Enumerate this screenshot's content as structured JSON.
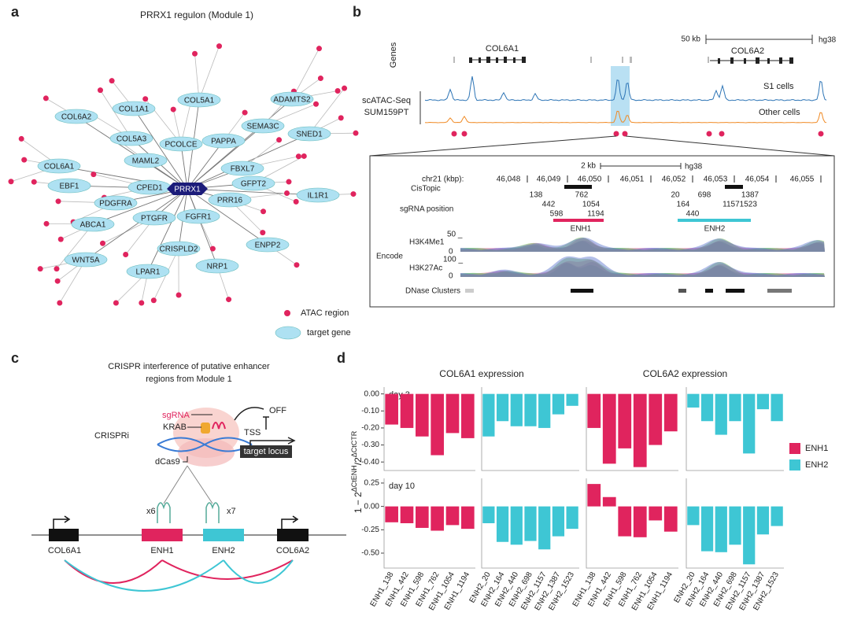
{
  "panel_labels": [
    "a",
    "b",
    "c",
    "d"
  ],
  "network": {
    "title": "PRRX1 regulon (Module 1)",
    "center": "PRRX1",
    "genes": [
      "COL1A1",
      "COL5A1",
      "ADAMTS2",
      "COL6A2",
      "COL5A3",
      "PCOLCE",
      "PAPPA",
      "SEMA3C",
      "SNED1",
      "MAML2",
      "FBXL7",
      "COL6A1",
      "EBF1",
      "CPED1",
      "GFPT2",
      "IL1R1",
      "PDGFRA",
      "PRR16",
      "FGFR1",
      "PTGFR",
      "ABCA1",
      "ENPP2",
      "CRISPLD2",
      "WNT5A",
      "NRP1",
      "LPAR1"
    ],
    "legend": [
      "ATAC region",
      "target gene"
    ]
  },
  "tracks": {
    "genes_label": "Genes",
    "gene1": "COL6A1",
    "gene2": "COL6A2",
    "scale": "50 kb",
    "build": "hg38",
    "assay": [
      "scATAC-Seq",
      "SUM159PT"
    ],
    "track1": "S1 cells",
    "track2": "Other cells",
    "inset": {
      "scale": "2 kb",
      "build": "hg38",
      "coord_label": "chr21 (kbp):",
      "coords": [
        "46,048",
        "46,049",
        "46,050",
        "46,051",
        "46,052",
        "46,053",
        "46,054",
        "46,055"
      ],
      "cistopic": "CisTopic",
      "sgrna": "sgRNA position",
      "sgrna_numbers": [
        "138",
        "762",
        "442",
        "1054",
        "598",
        "1194",
        "20",
        "698",
        "1387",
        "164",
        "11571523",
        "440"
      ],
      "enh1": "ENH1",
      "enh2": "ENH2",
      "encode": "Encode",
      "h3k4": "H3K4Me1",
      "h3k4_max": "50 _",
      "h3k27": "H3K27Ac",
      "h3k27_max": "100 _",
      "zero": "0",
      "dnase": "DNase Clusters"
    }
  },
  "crispr": {
    "title": [
      "CRISPR interference of putative enhancer",
      "regions from Module 1"
    ],
    "method": "CRISPRi",
    "sgrna": "sgRNA",
    "krab": "KRAB",
    "dcas9": "dCas9",
    "off": "OFF",
    "tss": "TSS",
    "target": "target locus",
    "x6": "x6",
    "x7": "x7",
    "loci": [
      "COL6A1",
      "ENH1",
      "ENH2",
      "COL6A2"
    ]
  },
  "chart_data": {
    "type": "bar",
    "columns": [
      "COL6A1 expression",
      "COL6A2 expression"
    ],
    "rows": [
      {
        "label": "day 3",
        "ylim": [
          -0.45,
          0.04
        ],
        "yticks": [
          {
            "value": 0,
            "label": "0.00"
          },
          {
            "value": -0.1,
            "label": "-0.10"
          },
          {
            "value": -0.2,
            "label": "-0.20"
          },
          {
            "value": -0.3,
            "label": "-0.30"
          },
          {
            "value": -0.4,
            "label": "-0.40"
          }
        ]
      },
      {
        "label": "day 10",
        "ylim": [
          -0.66,
          0.3
        ],
        "yticks": [
          0.25,
          {
            "value": 0,
            "label": "0.00"
          },
          -0.25,
          {
            "value": -0.5,
            "label": "-0.50"
          }
        ]
      }
    ],
    "y_label": {
      "base": "1 − 2",
      "sup1": "ΔCtENH",
      "mid": "/2",
      "sup2": "ΔCtCTR"
    },
    "series": [
      {
        "name": "ENH1",
        "color": "#e0245e",
        "categories": [
          "ENH1_138",
          "ENH1_442",
          "ENH1_598",
          "ENH1_762",
          "ENH1_1054",
          "ENH1_1194"
        ],
        "values": [
          [
            [
              -0.18,
              -0.2,
              -0.25,
              -0.36,
              -0.23,
              -0.26
            ],
            [
              -0.2,
              -0.41,
              -0.32,
              -0.43,
              -0.3,
              -0.22
            ]
          ],
          [
            [
              -0.17,
              -0.18,
              -0.23,
              -0.26,
              -0.2,
              -0.24
            ],
            [
              0.24,
              0.1,
              -0.32,
              -0.33,
              -0.15,
              -0.27
            ]
          ]
        ]
      },
      {
        "name": "ENH2",
        "color": "#3ec6d4",
        "categories": [
          "ENH2_20",
          "ENH2_164",
          "ENH2_440",
          "ENH2_698",
          "ENH2_1157",
          "ENH2_1387",
          "ENH2_1523"
        ],
        "values": [
          [
            [
              -0.25,
              -0.16,
              -0.19,
              -0.19,
              -0.2,
              -0.12,
              -0.07
            ],
            [
              -0.08,
              -0.16,
              -0.24,
              -0.16,
              -0.35,
              -0.09,
              -0.16
            ]
          ],
          [
            [
              -0.18,
              -0.38,
              -0.41,
              -0.37,
              -0.46,
              -0.32,
              -0.24
            ],
            [
              -0.2,
              -0.48,
              -0.49,
              -0.41,
              -0.62,
              -0.3,
              -0.21
            ]
          ]
        ]
      }
    ]
  }
}
